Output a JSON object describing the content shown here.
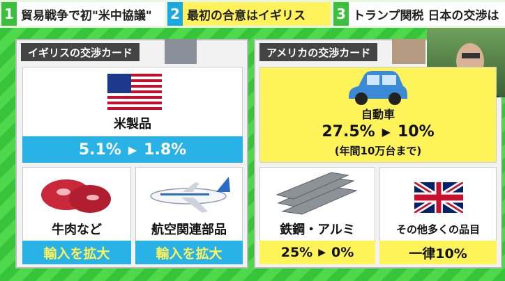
{
  "top_bar": {
    "items": [
      {
        "number": "1",
        "text": "貿易戦争で初\"米中協議\""
      },
      {
        "number": "2",
        "text": "最初の合意はイギリス"
      },
      {
        "number": "3",
        "text": "トランプ関税 日本の交渉は"
      }
    ]
  },
  "left_panel": {
    "title": "イギリスの交渉カード",
    "main": {
      "label": "米製品",
      "from": "5.1%",
      "to": "1.8%"
    },
    "cards": [
      {
        "label": "牛肉など",
        "result": "輸入を拡大"
      },
      {
        "label": "航空関連部品",
        "result": "輸入を拡大"
      }
    ]
  },
  "right_panel": {
    "title": "アメリカの交渉カード",
    "main": {
      "label": "自動車",
      "from": "27.5%",
      "to": "10%",
      "note": "(年間10万台まで)"
    },
    "cards": [
      {
        "label": "鉄鋼・アルミ",
        "from": "25%",
        "to": "0%"
      },
      {
        "label": "その他多くの品目",
        "result": "一律10%"
      }
    ]
  }
}
